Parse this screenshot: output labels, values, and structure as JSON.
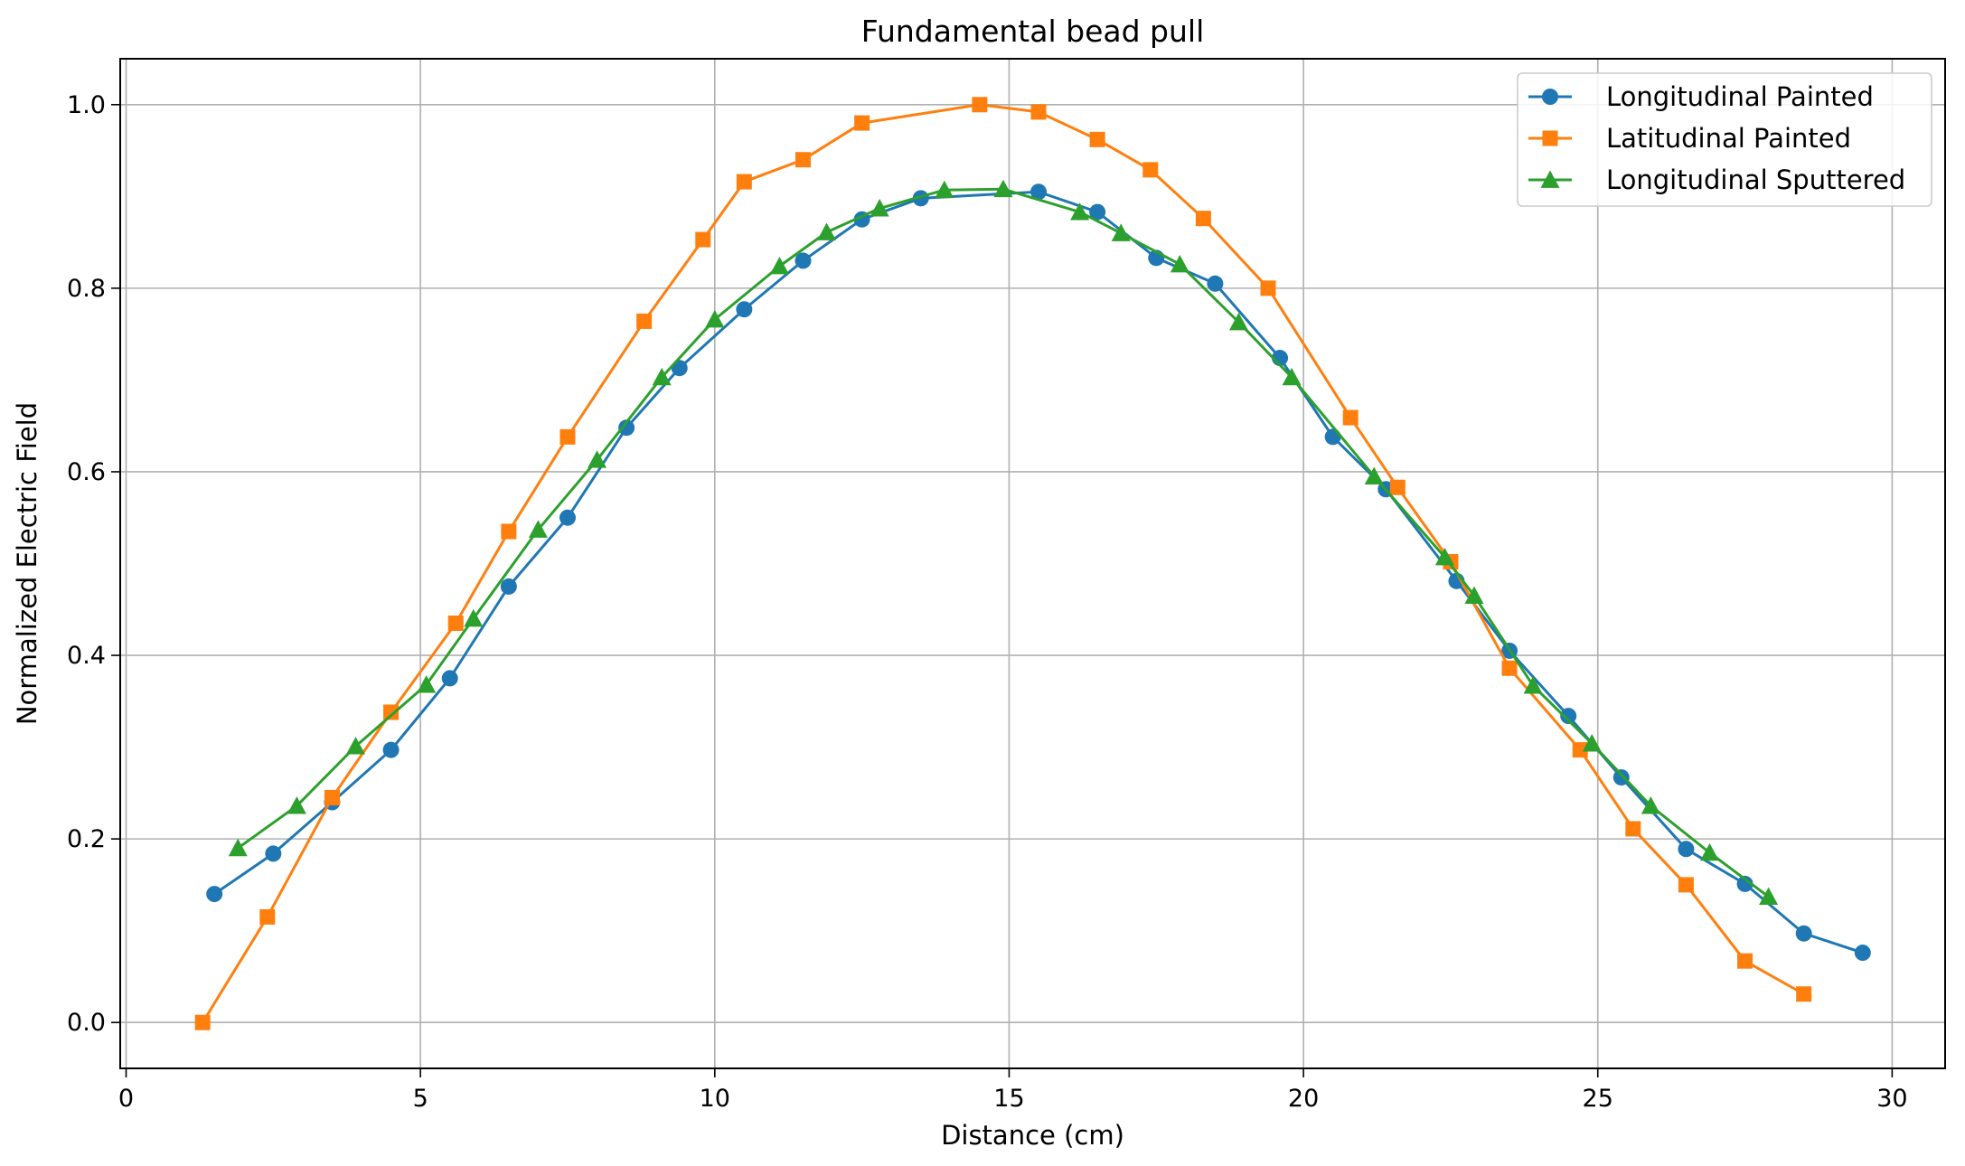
{
  "chart_data": {
    "type": "line",
    "title": "Fundamental bead pull",
    "xlabel": "Distance (cm)",
    "ylabel": "Normalized Electric Field",
    "xlim": [
      -0.1,
      30.9
    ],
    "ylim": [
      -0.05,
      1.05
    ],
    "xticks": [
      0,
      5,
      10,
      15,
      20,
      25,
      30
    ],
    "yticks": [
      0.0,
      0.2,
      0.4,
      0.6,
      0.8,
      1.0
    ],
    "xtick_labels": [
      "0",
      "5",
      "10",
      "15",
      "20",
      "25",
      "30"
    ],
    "ytick_labels": [
      "0.0",
      "0.2",
      "0.4",
      "0.6",
      "0.8",
      "1.0"
    ],
    "grid": true,
    "legend_position": "top-right",
    "series": [
      {
        "name": "Longitudinal Painted",
        "color": "#1f77b4",
        "marker": "circle",
        "x": [
          1.5,
          2.5,
          3.5,
          4.5,
          5.5,
          6.5,
          7.5,
          8.5,
          9.4,
          10.5,
          11.5,
          12.5,
          13.5,
          15.5,
          16.5,
          17.5,
          18.5,
          19.6,
          20.5,
          21.4,
          22.6,
          23.5,
          24.5,
          25.4,
          26.5,
          27.5,
          28.5,
          29.5
        ],
        "y": [
          0.14,
          0.184,
          0.24,
          0.297,
          0.375,
          0.475,
          0.55,
          0.648,
          0.713,
          0.777,
          0.83,
          0.875,
          0.898,
          0.905,
          0.883,
          0.833,
          0.805,
          0.724,
          0.638,
          0.581,
          0.481,
          0.405,
          0.334,
          0.267,
          0.189,
          0.151,
          0.097,
          0.076
        ]
      },
      {
        "name": "Latitudinal Painted",
        "color": "#ff7f0e",
        "marker": "square",
        "x": [
          1.3,
          2.4,
          3.5,
          4.5,
          5.6,
          6.5,
          7.5,
          8.8,
          9.8,
          10.5,
          11.5,
          12.5,
          14.5,
          15.5,
          16.5,
          17.4,
          18.3,
          19.4,
          20.8,
          21.6,
          22.5,
          23.5,
          24.7,
          25.6,
          26.5,
          27.5,
          28.5
        ],
        "y": [
          0.0,
          0.115,
          0.245,
          0.338,
          0.435,
          0.535,
          0.638,
          0.764,
          0.853,
          0.916,
          0.94,
          0.98,
          1.0,
          0.992,
          0.962,
          0.929,
          0.876,
          0.8,
          0.659,
          0.583,
          0.502,
          0.386,
          0.297,
          0.211,
          0.15,
          0.067,
          0.031
        ]
      },
      {
        "name": "Longitudinal Sputtered",
        "color": "#2ca02c",
        "marker": "triangle",
        "x": [
          1.9,
          2.9,
          3.9,
          5.1,
          5.9,
          7.0,
          8.0,
          9.1,
          10.0,
          11.1,
          11.9,
          12.8,
          13.9,
          14.9,
          16.2,
          16.9,
          17.9,
          18.9,
          19.8,
          21.2,
          22.4,
          22.9,
          23.9,
          24.9,
          25.9,
          26.9,
          27.9
        ],
        "y": [
          0.19,
          0.236,
          0.301,
          0.368,
          0.44,
          0.537,
          0.613,
          0.703,
          0.766,
          0.824,
          0.861,
          0.887,
          0.907,
          0.908,
          0.883,
          0.86,
          0.826,
          0.763,
          0.703,
          0.595,
          0.507,
          0.465,
          0.367,
          0.304,
          0.236,
          0.185,
          0.137
        ]
      }
    ]
  }
}
